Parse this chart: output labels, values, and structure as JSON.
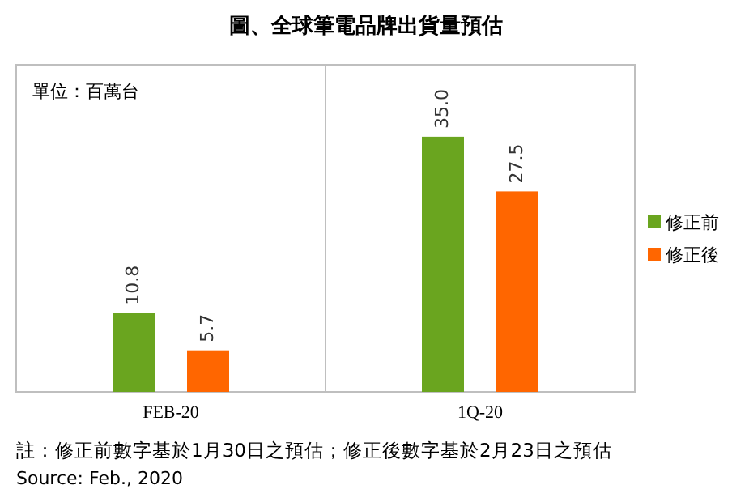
{
  "chart_data": {
    "type": "bar",
    "title": "圖、全球筆電品牌出貨量預估",
    "categories": [
      "FEB-20",
      "1Q-20"
    ],
    "series": [
      {
        "name": "修正前",
        "color": "#6aa51f",
        "values": [
          10.8,
          35.0
        ],
        "value_labels": [
          "10.8",
          "35.0"
        ]
      },
      {
        "name": "修正後",
        "color": "#ff6600",
        "values": [
          5.7,
          27.5
        ],
        "value_labels": [
          "5.7",
          "27.5"
        ]
      }
    ],
    "legend": "right",
    "annotations": [
      "單位：百萬台",
      "註：修正前數字基於1月30日之預估；修正後數字基於2月23日之預估",
      "Source: Feb., 2020"
    ]
  }
}
